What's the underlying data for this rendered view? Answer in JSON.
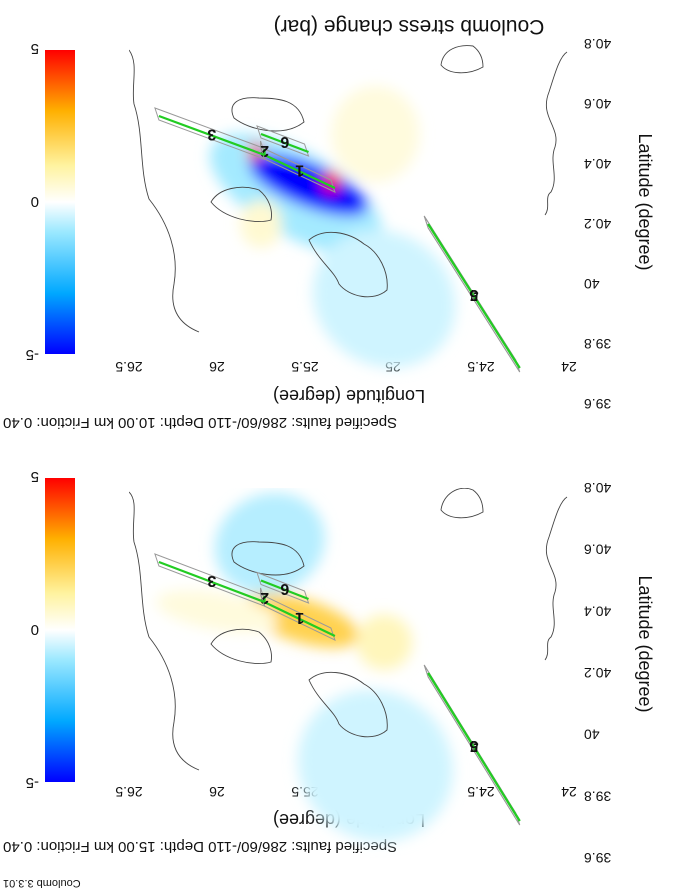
{
  "figure": {
    "software": "Coulomb 3.3.01",
    "colorbar_title": "Coulomb stress change (bar)",
    "colorbar_ticks": [
      "-5",
      "0",
      "5"
    ]
  },
  "chart_data": [
    {
      "type": "heatmap",
      "panel": "depth-15",
      "subtitle": "Specified faults: 286/60/-110  Depth: 15.00 km  Friction: 0.40",
      "xlabel": "Longitude (degree)",
      "ylabel": "Latitude (degree)",
      "xlim": [
        24,
        26.5
      ],
      "ylim": [
        39.6,
        40.8
      ],
      "xticks": [
        "24",
        "24.5",
        "25",
        "25.5",
        "26",
        "26.5"
      ],
      "yticks": [
        "39.6",
        "39.8",
        "40",
        "40.2",
        "40.4",
        "40.6",
        "40.8"
      ],
      "clim": [
        -5,
        5
      ],
      "colormap": [
        "#0000ff",
        "#00a8ff",
        "#9ae8ff",
        "#ffffff",
        "#fff3a0",
        "#ffb000",
        "#ff0000"
      ],
      "faults": [
        {
          "label": "1",
          "from": [
            25.33,
            40.32
          ],
          "to": [
            25.73,
            40.43
          ]
        },
        {
          "label": "2",
          "from": [
            25.73,
            40.43
          ],
          "to": [
            25.73,
            40.45
          ]
        },
        {
          "label": "3",
          "from": [
            25.73,
            40.43
          ],
          "to": [
            26.33,
            40.56
          ]
        },
        {
          "label": "4",
          "from": [
            24.28,
            39.72
          ],
          "to": [
            24.8,
            40.2
          ]
        },
        {
          "label": "5",
          "from": [
            24.28,
            39.72
          ],
          "to": [
            24.8,
            40.2
          ]
        },
        {
          "label": "6",
          "from": [
            25.48,
            40.44
          ],
          "to": [
            25.75,
            40.5
          ]
        }
      ],
      "contours": [
        {
          "cx": 25.52,
          "cy": 40.37,
          "rx": 0.28,
          "ry": 0.04,
          "angle": 17,
          "value": 5
        },
        {
          "cx": 25.52,
          "cy": 40.37,
          "rx": 0.34,
          "ry": 0.07,
          "angle": 17,
          "value": 2.5
        },
        {
          "cx": 25.1,
          "cy": 39.9,
          "rx": 0.45,
          "ry": 0.24,
          "angle": 35,
          "value": -0.8
        },
        {
          "cx": 25.7,
          "cy": 40.62,
          "rx": 0.32,
          "ry": 0.16,
          "angle": -25,
          "value": -1.2
        },
        {
          "cx": 26.0,
          "cy": 40.4,
          "rx": 0.35,
          "ry": 0.06,
          "angle": 10,
          "value": 0.6
        },
        {
          "cx": 25.05,
          "cy": 40.3,
          "rx": 0.16,
          "ry": 0.09,
          "angle": 20,
          "value": 1.2
        }
      ]
    },
    {
      "type": "heatmap",
      "panel": "depth-10",
      "subtitle": "Specified faults: 286/60/-110  Depth: 10.00 km  Friction: 0.40",
      "xlabel": "Longitude (degree)",
      "ylabel": "Latitude (degree)",
      "xlim": [
        24,
        26.5
      ],
      "ylim": [
        39.6,
        40.8
      ],
      "xticks": [
        "24",
        "24.5",
        "25",
        "25.5",
        "26",
        "26.5"
      ],
      "yticks": [
        "39.6",
        "39.8",
        "40",
        "40.2",
        "40.4",
        "40.6",
        "40.8"
      ],
      "clim": [
        -5,
        5
      ],
      "colormap": [
        "#0000ff",
        "#00a8ff",
        "#9ae8ff",
        "#ffffff",
        "#fff3a0",
        "#ffb000",
        "#ff0000"
      ],
      "faults": [
        {
          "label": "1",
          "from": [
            25.33,
            40.32
          ],
          "to": [
            25.73,
            40.43
          ]
        },
        {
          "label": "2",
          "from": [
            25.73,
            40.43
          ],
          "to": [
            25.73,
            40.45
          ]
        },
        {
          "label": "3",
          "from": [
            25.73,
            40.43
          ],
          "to": [
            26.33,
            40.56
          ]
        },
        {
          "label": "4",
          "from": [
            24.28,
            39.72
          ],
          "to": [
            24.8,
            40.2
          ]
        },
        {
          "label": "5",
          "from": [
            24.28,
            39.72
          ],
          "to": [
            24.8,
            40.2
          ]
        },
        {
          "label": "6",
          "from": [
            25.48,
            40.44
          ],
          "to": [
            25.75,
            40.5
          ]
        }
      ],
      "contours": [
        {
          "cx": 25.55,
          "cy": 40.3,
          "rx": 0.55,
          "ry": 0.14,
          "angle": 30,
          "value": -1.5
        },
        {
          "cx": 25.48,
          "cy": 40.33,
          "rx": 0.36,
          "ry": 0.07,
          "angle": 22,
          "value": -5
        },
        {
          "cx": 25.05,
          "cy": 39.95,
          "rx": 0.42,
          "ry": 0.22,
          "angle": 35,
          "value": -0.8
        },
        {
          "cx": 25.35,
          "cy": 40.34,
          "rx": 0.05,
          "ry": 0.035,
          "angle": 0,
          "value": 5
        },
        {
          "cx": 25.78,
          "cy": 40.44,
          "rx": 0.04,
          "ry": 0.03,
          "angle": 0,
          "value": 5
        },
        {
          "cx": 25.1,
          "cy": 40.5,
          "rx": 0.25,
          "ry": 0.16,
          "angle": 0,
          "value": 0.6
        },
        {
          "cx": 25.75,
          "cy": 40.2,
          "rx": 0.12,
          "ry": 0.08,
          "angle": 0,
          "value": 0.8
        }
      ]
    }
  ]
}
